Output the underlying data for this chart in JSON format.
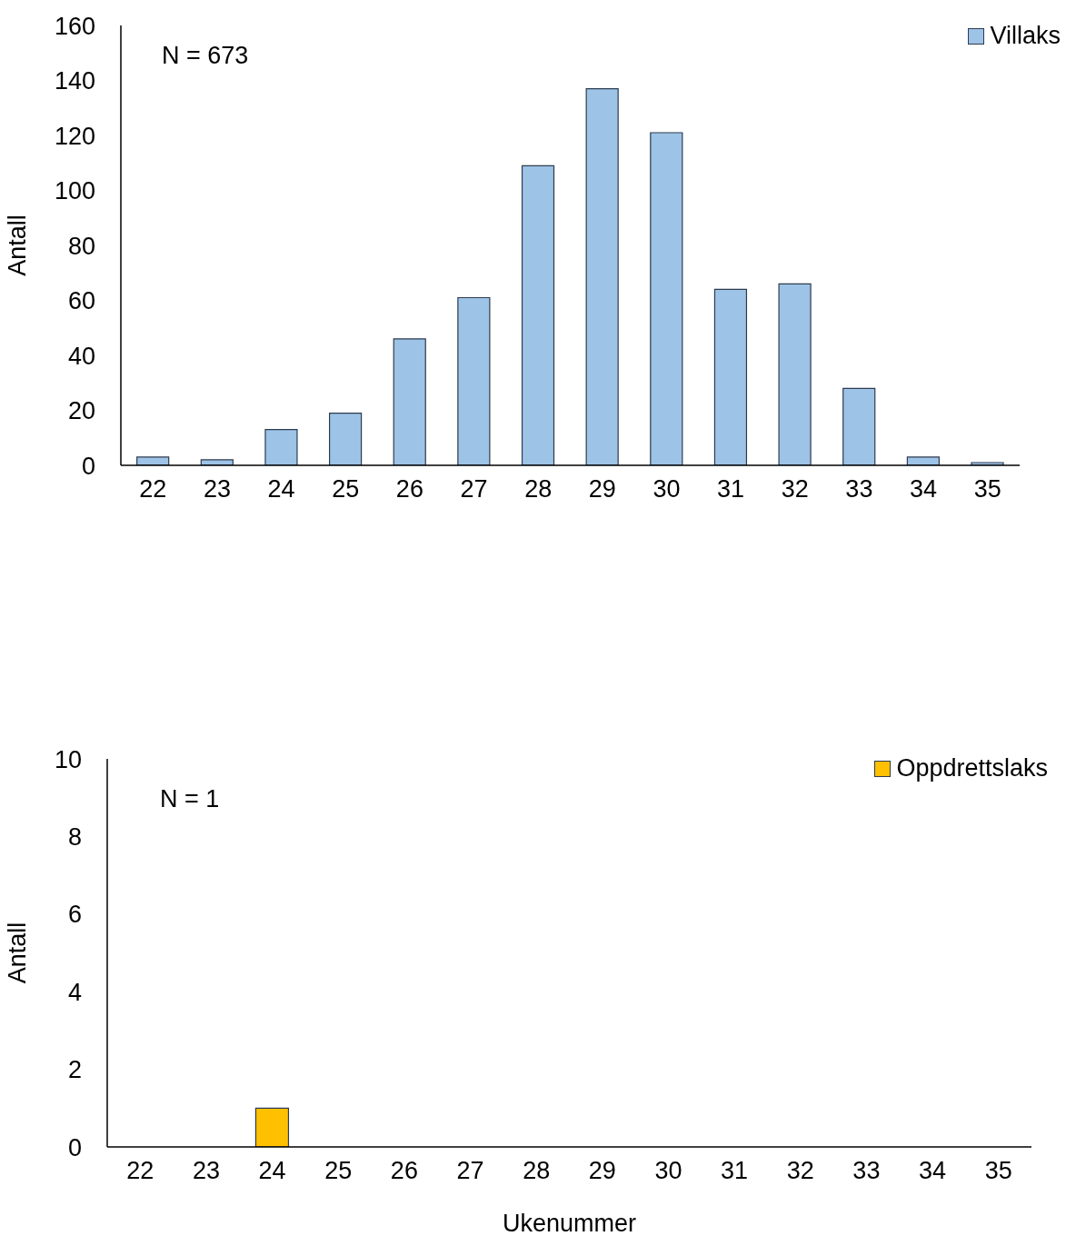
{
  "chart_data": [
    {
      "type": "bar",
      "categories": [
        "22",
        "23",
        "24",
        "25",
        "26",
        "27",
        "28",
        "29",
        "30",
        "31",
        "32",
        "33",
        "34",
        "35"
      ],
      "series": [
        {
          "name": "Villaks",
          "color": "#9dc3e6",
          "values": [
            3,
            2,
            13,
            19,
            46,
            61,
            109,
            137,
            121,
            64,
            66,
            28,
            3,
            1
          ]
        }
      ],
      "ylabel": "Antall",
      "ylim": [
        0,
        160
      ],
      "yticks": [
        0,
        20,
        40,
        60,
        80,
        100,
        120,
        140,
        160
      ],
      "annotations": [
        "N = 673"
      ],
      "legend": "top right",
      "grid": false
    },
    {
      "type": "bar",
      "categories": [
        "22",
        "23",
        "24",
        "25",
        "26",
        "27",
        "28",
        "29",
        "30",
        "31",
        "32",
        "33",
        "34",
        "35"
      ],
      "series": [
        {
          "name": "Oppdrettslaks",
          "color": "#ffc000",
          "values": [
            0,
            0,
            1,
            0,
            0,
            0,
            0,
            0,
            0,
            0,
            0,
            0,
            0,
            0
          ]
        }
      ],
      "xlabel": "Ukenummer",
      "ylabel": "Antall",
      "ylim": [
        0,
        10
      ],
      "yticks": [
        0,
        2,
        4,
        6,
        8,
        10
      ],
      "annotations": [
        "N = 1"
      ],
      "legend": "top right",
      "grid": false
    }
  ]
}
